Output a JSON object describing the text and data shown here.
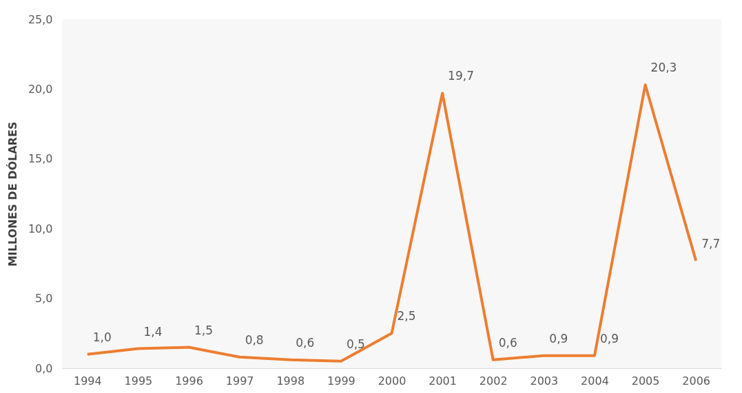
{
  "chart_data": {
    "type": "line",
    "ylabel": "MILLONES DE DÓLARES",
    "categories": [
      "1994",
      "1995",
      "1996",
      "1997",
      "1998",
      "1999",
      "2000",
      "2001",
      "2002",
      "2003",
      "2004",
      "2005",
      "2006"
    ],
    "series": [
      {
        "color": "#ed7d31",
        "values": [
          1.0,
          1.4,
          1.5,
          0.8,
          0.6,
          0.5,
          2.5,
          19.7,
          0.6,
          0.9,
          0.9,
          20.3,
          7.7
        ],
        "value_labels": [
          "1,0",
          "1,4",
          "1,5",
          "0,8",
          "0,6",
          "0,5",
          "2,5",
          "19,7",
          "0,6",
          "0,9",
          "0,9",
          "20,3",
          "7,7"
        ]
      }
    ],
    "ylim": [
      0,
      25
    ],
    "yticks": [
      {
        "value": 0,
        "label": "0,0"
      },
      {
        "value": 5,
        "label": "5,0"
      },
      {
        "value": 10,
        "label": "10,0"
      },
      {
        "value": 15,
        "label": "15,0"
      },
      {
        "value": 20,
        "label": "20,0"
      },
      {
        "value": 25,
        "label": "25,0"
      }
    ],
    "grid": false,
    "marker": "none",
    "line_style": "solid"
  }
}
